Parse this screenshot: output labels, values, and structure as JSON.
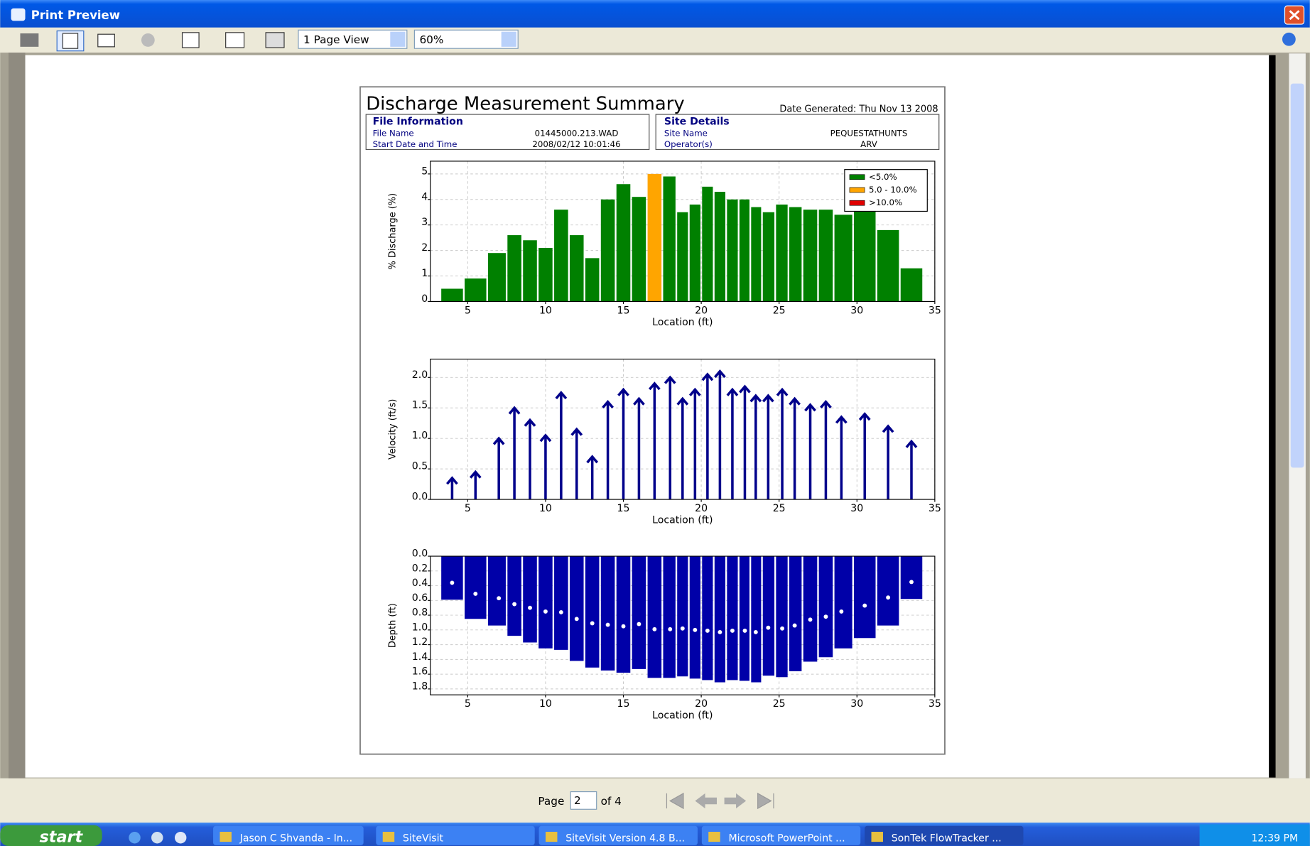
{
  "window": {
    "title": "Print Preview",
    "view_mode": "1 Page View",
    "zoom": "60%"
  },
  "report": {
    "title": "Discharge Measurement Summary",
    "date_generated": "Date Generated: Thu Nov 13 2008",
    "file_information": {
      "heading": "File Information",
      "rows": [
        [
          "File Name",
          "01445000.213.WAD"
        ],
        [
          "Start Date and Time",
          "2008/02/12 10:01:46"
        ]
      ]
    },
    "site_details": {
      "heading": "Site Details",
      "rows": [
        [
          "Site Name",
          "PEQUESTATHUNTS"
        ],
        [
          "Operator(s)",
          "ARV"
        ]
      ]
    }
  },
  "chart_data": [
    {
      "type": "bar",
      "x_label": "Location (ft)",
      "y_label": "% Discharge (%)",
      "x": [
        4.0,
        5.5,
        7.0,
        8.0,
        9.0,
        10.0,
        11.0,
        12.0,
        13.0,
        14.0,
        15.0,
        16.0,
        17.0,
        18.0,
        18.8,
        19.6,
        20.4,
        21.2,
        22.0,
        22.8,
        23.5,
        24.3,
        25.2,
        26.0,
        27.0,
        28.0,
        29.0,
        30.5,
        32.0,
        33.5
      ],
      "values": [
        0.5,
        0.9,
        1.9,
        2.6,
        2.4,
        2.1,
        3.6,
        2.6,
        1.7,
        4.0,
        4.6,
        4.1,
        5.0,
        4.9,
        3.5,
        3.8,
        4.5,
        4.3,
        4.0,
        4.0,
        3.7,
        3.5,
        3.8,
        3.7,
        3.6,
        3.6,
        3.4,
        3.8,
        2.8,
        1.3
      ],
      "colors": [
        "#008000",
        "#008000",
        "#008000",
        "#008000",
        "#008000",
        "#008000",
        "#008000",
        "#008000",
        "#008000",
        "#008000",
        "#008000",
        "#008000",
        "#ffa500",
        "#008000",
        "#008000",
        "#008000",
        "#008000",
        "#008000",
        "#008000",
        "#008000",
        "#008000",
        "#008000",
        "#008000",
        "#008000",
        "#008000",
        "#008000",
        "#008000",
        "#008000",
        "#008000",
        "#008000"
      ],
      "legend": [
        {
          "label": "<5.0%",
          "color": "#008000"
        },
        {
          "label": "5.0 - 10.0%",
          "color": "#ffa500"
        },
        {
          "label": ">10.0%",
          "color": "#e00000"
        }
      ],
      "legend_position": "upper right",
      "xlim": [
        2.6,
        35
      ],
      "xticks": [
        5,
        10,
        15,
        20,
        25,
        30,
        35
      ],
      "ylim": [
        0,
        5.5
      ],
      "yticks": [
        0,
        1,
        2,
        3,
        4,
        5
      ],
      "grid": true
    },
    {
      "type": "arrow",
      "x_label": "Location (ft)",
      "y_label": "Velocity (ft/s)",
      "x": [
        4.0,
        5.5,
        7.0,
        8.0,
        9.0,
        10.0,
        11.0,
        12.0,
        13.0,
        14.0,
        15.0,
        16.0,
        17.0,
        18.0,
        18.8,
        19.6,
        20.4,
        21.2,
        22.0,
        22.8,
        23.5,
        24.3,
        25.2,
        26.0,
        27.0,
        28.0,
        29.0,
        30.5,
        32.0,
        33.5
      ],
      "values": [
        0.35,
        0.45,
        1.0,
        1.5,
        1.3,
        1.05,
        1.75,
        1.15,
        0.7,
        1.6,
        1.8,
        1.65,
        1.9,
        2.0,
        1.65,
        1.8,
        2.05,
        2.1,
        1.8,
        1.85,
        1.7,
        1.7,
        1.8,
        1.65,
        1.55,
        1.6,
        1.35,
        1.4,
        1.2,
        0.95
      ],
      "color": "#00008b",
      "xlim": [
        2.6,
        35
      ],
      "xticks": [
        5,
        10,
        15,
        20,
        25,
        30,
        35
      ],
      "ylim": [
        0,
        2.3
      ],
      "yticks": [
        {
          "value": 0,
          "label": "0.0"
        },
        {
          "value": 0.5,
          "label": "0.5"
        },
        {
          "value": 1,
          "label": "1.0"
        },
        {
          "value": 1.5,
          "label": "1.5"
        },
        {
          "value": 2,
          "label": "2.0"
        }
      ],
      "grid": true
    },
    {
      "type": "depth",
      "x_label": "Location (ft)",
      "y_label": "Depth (ft)",
      "x": [
        4.0,
        5.5,
        7.0,
        8.0,
        9.0,
        10.0,
        11.0,
        12.0,
        13.0,
        14.0,
        15.0,
        16.0,
        17.0,
        18.0,
        18.8,
        19.6,
        20.4,
        21.2,
        22.0,
        22.8,
        23.5,
        24.3,
        25.2,
        26.0,
        27.0,
        28.0,
        29.0,
        30.5,
        32.0,
        33.5
      ],
      "values": [
        0.59,
        0.85,
        0.94,
        1.08,
        1.17,
        1.25,
        1.27,
        1.42,
        1.51,
        1.55,
        1.58,
        1.53,
        1.65,
        1.65,
        1.63,
        1.66,
        1.68,
        1.71,
        1.68,
        1.69,
        1.71,
        1.62,
        1.64,
        1.56,
        1.43,
        1.37,
        1.25,
        1.11,
        0.94,
        0.58
      ],
      "point_depths": [
        0.36,
        0.51,
        0.57,
        0.65,
        0.7,
        0.75,
        0.76,
        0.85,
        0.91,
        0.93,
        0.95,
        0.92,
        0.99,
        0.99,
        0.98,
        1.0,
        1.01,
        1.03,
        1.01,
        1.01,
        1.03,
        0.97,
        0.98,
        0.94,
        0.86,
        0.82,
        0.75,
        0.67,
        0.56,
        0.35
      ],
      "color": "#0000a8",
      "point_color": "#ffffff",
      "y_inverted": true,
      "xlim": [
        2.6,
        35
      ],
      "xticks": [
        5,
        10,
        15,
        20,
        25,
        30,
        35
      ],
      "ylim": [
        0,
        1.88
      ],
      "yticks": [
        {
          "value": 0,
          "label": "0.0"
        },
        {
          "value": 0.2,
          "label": "0.2"
        },
        {
          "value": 0.4,
          "label": "0.4"
        },
        {
          "value": 0.6,
          "label": "0.6"
        },
        {
          "value": 0.8,
          "label": "0.8"
        },
        {
          "value": 1,
          "label": "1.0"
        },
        {
          "value": 1.2,
          "label": "1.2"
        },
        {
          "value": 1.4,
          "label": "1.4"
        },
        {
          "value": 1.6,
          "label": "1.6"
        },
        {
          "value": 1.8,
          "label": "1.8"
        }
      ],
      "grid": true
    }
  ],
  "pager": {
    "label": "Page",
    "current": "2",
    "total": "of 4"
  },
  "taskbar": {
    "start": "start",
    "items": [
      "Jason C Shvanda - In...",
      "SiteVisit",
      "SiteVisit Version 4.8 B...",
      "Microsoft PowerPoint ...",
      "SonTek FlowTracker ..."
    ],
    "clock": "12:39 PM"
  }
}
